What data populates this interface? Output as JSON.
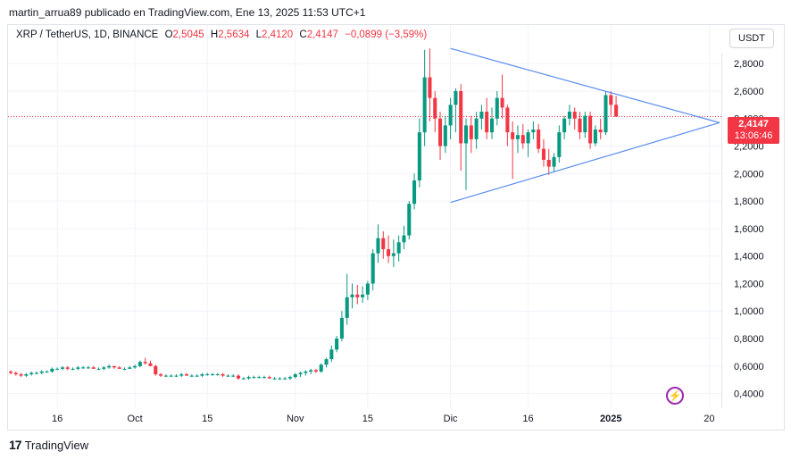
{
  "header": {
    "text": "martin_arrua89 publicado en TradingView.com, Ene 13, 2025 11:53 UTC+1"
  },
  "legend": {
    "symbol": "XRP / TetherUS, 1D, BINANCE",
    "open_label": "O",
    "open": "2,5045",
    "high_label": "H",
    "high": "2,5634",
    "low_label": "L",
    "low": "2,4120",
    "close_label": "C",
    "close": "2,4147",
    "change": "−0,0899 (−3,59%)"
  },
  "currency_button": "USDT",
  "price_tag": {
    "price": "2,4147",
    "countdown": "13:06:46"
  },
  "footer": {
    "brand": "TradingView"
  },
  "icons": {
    "logo": "tradingview-logo-icon",
    "flash": "lightning-icon"
  },
  "colors": {
    "up": "#089981",
    "down": "#f23645",
    "trendline": "#5b8def",
    "grid": "#f0f3fa"
  },
  "chart_data": {
    "type": "candlestick",
    "title": "XRP / TetherUS, 1D, BINANCE",
    "xlabel": "",
    "ylabel": "",
    "y_tick_labels": [
      "2,8000",
      "2,6000",
      "2,4000",
      "2,2000",
      "2,0000",
      "1,8000",
      "1,6000",
      "1,4000",
      "1,2000",
      "1,0000",
      "0,8000",
      "0,6000",
      "0,4000"
    ],
    "y_tick_values": [
      2.8,
      2.6,
      2.4,
      2.2,
      2.0,
      1.8,
      1.6,
      1.4,
      1.2,
      1.0,
      0.8,
      0.6,
      0.4
    ],
    "ylim": [
      0.3,
      2.97
    ],
    "x_range": [
      "2024-09-07",
      "2025-01-22"
    ],
    "x_tick_labels": [
      {
        "label": "16",
        "date": "2024-09-16"
      },
      {
        "label": "Oct",
        "date": "2024-10-01"
      },
      {
        "label": "15",
        "date": "2024-10-15"
      },
      {
        "label": "Nov",
        "date": "2024-11-01"
      },
      {
        "label": "15",
        "date": "2024-11-15"
      },
      {
        "label": "Dic",
        "date": "2024-12-01"
      },
      {
        "label": "16",
        "date": "2024-12-16"
      },
      {
        "label": "2025",
        "date": "2025-01-01"
      },
      {
        "label": "20",
        "date": "2025-01-20"
      }
    ],
    "last_price": 2.4147,
    "candles_ohlc": [
      [
        0.56,
        0.57,
        0.54,
        0.55
      ],
      [
        0.55,
        0.56,
        0.53,
        0.54
      ],
      [
        0.54,
        0.55,
        0.52,
        0.53
      ],
      [
        0.53,
        0.55,
        0.52,
        0.54
      ],
      [
        0.54,
        0.56,
        0.53,
        0.55
      ],
      [
        0.55,
        0.56,
        0.54,
        0.55
      ],
      [
        0.55,
        0.57,
        0.54,
        0.56
      ],
      [
        0.56,
        0.57,
        0.55,
        0.56
      ],
      [
        0.56,
        0.59,
        0.55,
        0.58
      ],
      [
        0.58,
        0.59,
        0.57,
        0.58
      ],
      [
        0.58,
        0.6,
        0.57,
        0.59
      ],
      [
        0.59,
        0.6,
        0.57,
        0.58
      ],
      [
        0.58,
        0.59,
        0.57,
        0.58
      ],
      [
        0.58,
        0.6,
        0.57,
        0.59
      ],
      [
        0.59,
        0.6,
        0.58,
        0.59
      ],
      [
        0.59,
        0.6,
        0.58,
        0.59
      ],
      [
        0.59,
        0.6,
        0.58,
        0.58
      ],
      [
        0.58,
        0.59,
        0.57,
        0.58
      ],
      [
        0.58,
        0.6,
        0.57,
        0.59
      ],
      [
        0.59,
        0.61,
        0.58,
        0.6
      ],
      [
        0.6,
        0.6,
        0.58,
        0.59
      ],
      [
        0.59,
        0.6,
        0.58,
        0.58
      ],
      [
        0.58,
        0.59,
        0.57,
        0.58
      ],
      [
        0.58,
        0.6,
        0.58,
        0.59
      ],
      [
        0.59,
        0.61,
        0.58,
        0.6
      ],
      [
        0.6,
        0.64,
        0.59,
        0.63
      ],
      [
        0.63,
        0.66,
        0.61,
        0.62
      ],
      [
        0.62,
        0.64,
        0.6,
        0.6
      ],
      [
        0.6,
        0.61,
        0.53,
        0.54
      ],
      [
        0.54,
        0.55,
        0.52,
        0.53
      ],
      [
        0.53,
        0.54,
        0.52,
        0.53
      ],
      [
        0.53,
        0.54,
        0.52,
        0.53
      ],
      [
        0.53,
        0.54,
        0.52,
        0.53
      ],
      [
        0.53,
        0.55,
        0.52,
        0.54
      ],
      [
        0.54,
        0.55,
        0.53,
        0.53
      ],
      [
        0.53,
        0.54,
        0.52,
        0.53
      ],
      [
        0.53,
        0.54,
        0.52,
        0.53
      ],
      [
        0.53,
        0.55,
        0.52,
        0.54
      ],
      [
        0.54,
        0.55,
        0.53,
        0.54
      ],
      [
        0.54,
        0.55,
        0.53,
        0.54
      ],
      [
        0.54,
        0.55,
        0.53,
        0.54
      ],
      [
        0.54,
        0.55,
        0.52,
        0.53
      ],
      [
        0.53,
        0.54,
        0.52,
        0.53
      ],
      [
        0.53,
        0.54,
        0.52,
        0.53
      ],
      [
        0.53,
        0.54,
        0.5,
        0.51
      ],
      [
        0.51,
        0.52,
        0.5,
        0.51
      ],
      [
        0.51,
        0.53,
        0.5,
        0.52
      ],
      [
        0.52,
        0.53,
        0.51,
        0.52
      ],
      [
        0.52,
        0.53,
        0.51,
        0.52
      ],
      [
        0.52,
        0.53,
        0.51,
        0.52
      ],
      [
        0.52,
        0.53,
        0.51,
        0.51
      ],
      [
        0.51,
        0.52,
        0.5,
        0.51
      ],
      [
        0.51,
        0.52,
        0.5,
        0.51
      ],
      [
        0.51,
        0.52,
        0.5,
        0.51
      ],
      [
        0.51,
        0.53,
        0.5,
        0.52
      ],
      [
        0.52,
        0.55,
        0.51,
        0.54
      ],
      [
        0.54,
        0.56,
        0.52,
        0.55
      ],
      [
        0.55,
        0.57,
        0.53,
        0.56
      ],
      [
        0.56,
        0.58,
        0.54,
        0.57
      ],
      [
        0.57,
        0.58,
        0.55,
        0.56
      ],
      [
        0.56,
        0.62,
        0.55,
        0.61
      ],
      [
        0.61,
        0.66,
        0.59,
        0.65
      ],
      [
        0.65,
        0.75,
        0.63,
        0.72
      ],
      [
        0.72,
        0.82,
        0.7,
        0.8
      ],
      [
        0.8,
        1.0,
        0.78,
        0.95
      ],
      [
        0.95,
        1.27,
        0.9,
        1.1
      ],
      [
        1.1,
        1.2,
        1.02,
        1.12
      ],
      [
        1.12,
        1.19,
        1.05,
        1.1
      ],
      [
        1.1,
        1.18,
        1.06,
        1.12
      ],
      [
        1.12,
        1.22,
        1.08,
        1.2
      ],
      [
        1.2,
        1.45,
        1.15,
        1.42
      ],
      [
        1.42,
        1.63,
        1.35,
        1.53
      ],
      [
        1.53,
        1.58,
        1.38,
        1.45
      ],
      [
        1.45,
        1.55,
        1.35,
        1.4
      ],
      [
        1.4,
        1.52,
        1.32,
        1.42
      ],
      [
        1.42,
        1.55,
        1.36,
        1.5
      ],
      [
        1.5,
        1.62,
        1.45,
        1.55
      ],
      [
        1.55,
        1.8,
        1.52,
        1.78
      ],
      [
        1.78,
        2.0,
        1.74,
        1.95
      ],
      [
        1.95,
        2.4,
        1.9,
        2.3
      ],
      [
        2.3,
        2.9,
        2.2,
        2.7
      ],
      [
        2.7,
        2.91,
        2.38,
        2.55
      ],
      [
        2.55,
        2.6,
        2.3,
        2.4
      ],
      [
        2.4,
        2.45,
        2.1,
        2.2
      ],
      [
        2.2,
        2.42,
        2.15,
        2.35
      ],
      [
        2.35,
        2.55,
        2.25,
        2.5
      ],
      [
        2.5,
        2.62,
        2.3,
        2.6
      ],
      [
        2.6,
        2.65,
        2.02,
        2.22
      ],
      [
        2.22,
        2.4,
        1.88,
        2.35
      ],
      [
        2.35,
        2.42,
        2.15,
        2.25
      ],
      [
        2.25,
        2.45,
        2.18,
        2.4
      ],
      [
        2.4,
        2.5,
        2.32,
        2.45
      ],
      [
        2.45,
        2.55,
        2.25,
        2.3
      ],
      [
        2.3,
        2.48,
        2.25,
        2.4
      ],
      [
        2.4,
        2.6,
        2.35,
        2.55
      ],
      [
        2.55,
        2.72,
        2.4,
        2.48
      ],
      [
        2.48,
        2.5,
        2.2,
        2.3
      ],
      [
        2.3,
        2.38,
        1.96,
        2.25
      ],
      [
        2.25,
        2.35,
        2.15,
        2.28
      ],
      [
        2.28,
        2.36,
        2.18,
        2.22
      ],
      [
        2.22,
        2.32,
        2.12,
        2.3
      ],
      [
        2.3,
        2.38,
        2.25,
        2.32
      ],
      [
        2.32,
        2.36,
        2.15,
        2.18
      ],
      [
        2.18,
        2.25,
        2.05,
        2.1
      ],
      [
        2.1,
        2.18,
        1.99,
        2.05
      ],
      [
        2.05,
        2.15,
        2.01,
        2.12
      ],
      [
        2.12,
        2.35,
        2.08,
        2.3
      ],
      [
        2.3,
        2.42,
        2.25,
        2.4
      ],
      [
        2.4,
        2.5,
        2.35,
        2.45
      ],
      [
        2.45,
        2.48,
        2.32,
        2.4
      ],
      [
        2.4,
        2.45,
        2.25,
        2.3
      ],
      [
        2.3,
        2.45,
        2.26,
        2.42
      ],
      [
        2.42,
        2.45,
        2.18,
        2.22
      ],
      [
        2.22,
        2.35,
        2.2,
        2.32
      ],
      [
        2.32,
        2.4,
        2.25,
        2.3
      ],
      [
        2.3,
        2.6,
        2.28,
        2.57
      ],
      [
        2.57,
        2.6,
        2.42,
        2.5
      ],
      [
        2.5,
        2.5634,
        2.412,
        2.4147
      ]
    ],
    "trendlines": [
      {
        "name": "",
        "from": {
          "date": "2024-12-01",
          "price": 2.91
        },
        "to": {
          "date": "2025-01-22",
          "price": 2.37
        }
      },
      {
        "name": "",
        "from": {
          "date": "2024-12-01",
          "price": 1.79
        },
        "to": {
          "date": "2025-01-22",
          "price": 2.37
        }
      }
    ],
    "grid": true,
    "current_price_line": true
  }
}
